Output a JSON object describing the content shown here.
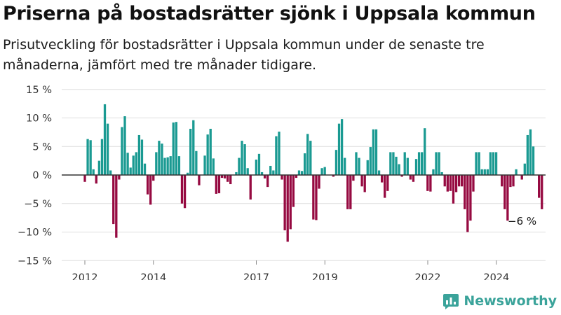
{
  "title": "Priserna på bostadsrätter sjönk i Uppsala kommun",
  "subtitle": "Prisutveckling för bostadsrätter i Uppsala kommun under de senaste tre månaderna, jämfört med tre månader tidigare.",
  "brand": {
    "name": "Newsworthy"
  },
  "colors": {
    "positive": "#1a9a92",
    "negative": "#960a41",
    "grid": "#dddddd",
    "zero_line": "#333333"
  },
  "chart_data": {
    "type": "bar",
    "title": "",
    "xlabel": "",
    "ylabel": "",
    "x_unit": "year",
    "x_start": 2012.0,
    "x_step": 0.0833,
    "x_tick_labels": [
      "2012",
      "2014",
      "2017",
      "2019",
      "2022",
      "2024"
    ],
    "x_ticks": [
      2012,
      2014,
      2017,
      2019,
      2022,
      2024
    ],
    "ylim": [
      -15,
      15
    ],
    "y_ticks": [
      15,
      10,
      5,
      0,
      -5,
      -10,
      -15
    ],
    "y_tick_labels": [
      "15 %",
      "10 %",
      "5 %",
      "0 %",
      "−5 %",
      "−10 %",
      "−15 %"
    ],
    "grid": true,
    "annotation": {
      "text": "−6 %",
      "value": -6
    },
    "values": [
      -1.2,
      6.3,
      6.1,
      1.0,
      -1.5,
      2.5,
      6.3,
      12.4,
      9.0,
      0.8,
      -8.6,
      -11.0,
      -0.8,
      8.4,
      10.3,
      3.9,
      1.3,
      3.4,
      4.0,
      7.0,
      6.2,
      2.0,
      -3.4,
      -5.2,
      -1.0,
      4.0,
      6.0,
      5.5,
      3.0,
      3.1,
      3.3,
      9.2,
      9.3,
      3.3,
      -5.0,
      -5.8,
      0.4,
      8.1,
      9.6,
      4.2,
      -1.8,
      0.0,
      3.4,
      7.1,
      8.1,
      2.9,
      -3.3,
      -3.2,
      -0.5,
      -0.6,
      -1.2,
      -1.6,
      0.0,
      0.5,
      3.0,
      6.0,
      5.4,
      1.2,
      -4.3,
      0.0,
      2.7,
      3.7,
      0.5,
      -0.6,
      -2.1,
      1.6,
      0.8,
      6.8,
      7.6,
      -0.8,
      -9.7,
      -11.7,
      -9.5,
      -5.6,
      -0.5,
      0.8,
      0.7,
      3.8,
      7.2,
      6.0,
      -7.8,
      -7.9,
      -2.4,
      1.2,
      1.4,
      0.0,
      0.0,
      -0.3,
      4.4,
      9.0,
      9.8,
      3.0,
      -6.0,
      -6.0,
      -1.0,
      4.0,
      3.0,
      -2.0,
      -3.0,
      2.6,
      4.9,
      8.0,
      8.0,
      0.8,
      -1.3,
      -4.0,
      -2.8,
      4.0,
      4.0,
      3.2,
      1.9,
      -0.3,
      4.0,
      3.0,
      -0.8,
      -1.2,
      2.8,
      4.0,
      4.0,
      8.2,
      -2.8,
      -2.9,
      1.0,
      4.0,
      4.0,
      0.5,
      -2.0,
      -2.9,
      -2.8,
      -5.0,
      -3.0,
      -2.0,
      -2.0,
      -6.0,
      -10.0,
      -8.0,
      -2.9,
      4.0,
      4.0,
      1.0,
      1.0,
      1.0,
      4.0,
      4.0,
      4.0,
      0.0,
      -2.0,
      -6.0,
      -8.0,
      -2.1,
      -2.0,
      1.0,
      0.0,
      -0.8,
      2.0,
      7.0,
      8.0,
      5.0,
      0.0,
      -4.0,
      -6.0
    ]
  }
}
